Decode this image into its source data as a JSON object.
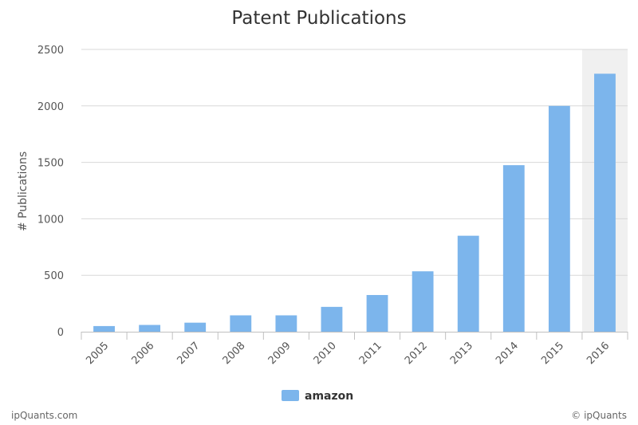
{
  "chart_data": {
    "type": "bar",
    "title": "Patent Publications",
    "xlabel": "",
    "ylabel": "# Publications",
    "categories": [
      "2005",
      "2006",
      "2007",
      "2008",
      "2009",
      "2010",
      "2011",
      "2012",
      "2013",
      "2014",
      "2015",
      "2016"
    ],
    "series": [
      {
        "name": "amazon",
        "values": [
          50,
          60,
          80,
          145,
          145,
          220,
          325,
          535,
          850,
          1475,
          2000,
          2285
        ]
      }
    ],
    "ylim": [
      0,
      2500
    ],
    "yticks": [
      "0",
      "500",
      "1000",
      "1500",
      "2000",
      "2500"
    ],
    "grid": true,
    "legend_position": "bottom",
    "highlighted_category": "2016",
    "colors": {
      "bar": "#7cb5ec",
      "highlight_band": "#f0f0f0",
      "grid": "#d8d8d8"
    }
  },
  "credits": {
    "left": "ipQuants.com",
    "right": "© ipQuants"
  }
}
